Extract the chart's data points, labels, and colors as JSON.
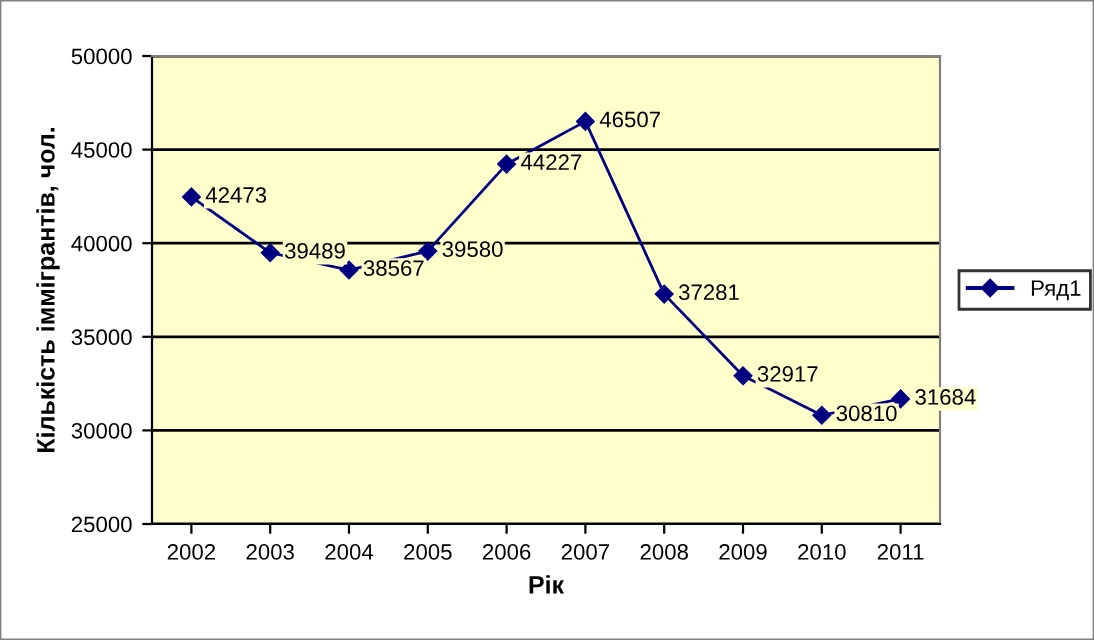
{
  "chart_data": {
    "type": "line",
    "xlabel": "Рік",
    "ylabel": "Кількість іммігрантів, чол.",
    "categories": [
      "2002",
      "2003",
      "2004",
      "2005",
      "2006",
      "2007",
      "2008",
      "2009",
      "2010",
      "2011"
    ],
    "series": [
      {
        "name": "Ряд1",
        "color": "#000080",
        "values": [
          42473,
          39489,
          38567,
          39580,
          44227,
          46507,
          37281,
          32917,
          30810,
          31684
        ]
      }
    ],
    "ylim": [
      25000,
      50000
    ],
    "yticks": [
      25000,
      30000,
      35000,
      40000,
      45000,
      50000
    ],
    "grid": "y",
    "legend": "right",
    "marker": "diamond",
    "line_style": "solid",
    "data_labels": true
  }
}
